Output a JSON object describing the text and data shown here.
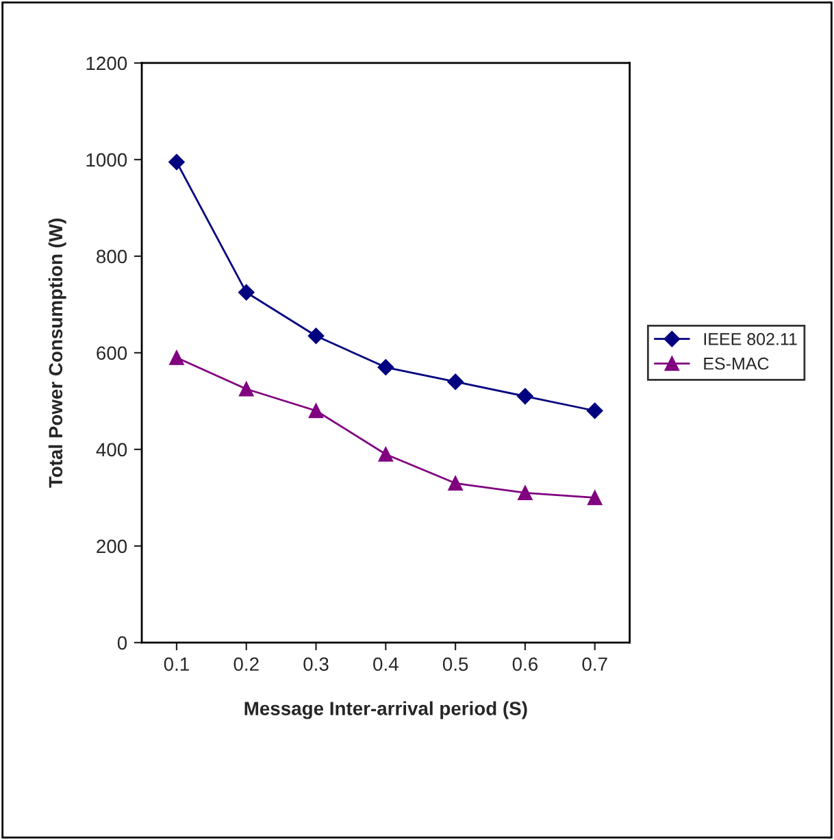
{
  "chart_data": {
    "type": "line",
    "xlabel": "Message Inter-arrival period (S)",
    "ylabel": "Total Power Consumption (W)",
    "categories": [
      "0.1",
      "0.2",
      "0.3",
      "0.4",
      "0.5",
      "0.6",
      "0.7"
    ],
    "series": [
      {
        "name": "IEEE 802.11",
        "color": "#000080",
        "marker": "diamond",
        "values": [
          995,
          725,
          635,
          570,
          540,
          510,
          480
        ]
      },
      {
        "name": "ES-MAC",
        "color": "#800080",
        "marker": "triangle",
        "values": [
          590,
          525,
          480,
          390,
          330,
          310,
          300
        ]
      }
    ],
    "ylim": [
      0,
      1200
    ],
    "yticks": [
      0,
      200,
      400,
      600,
      800,
      1000,
      1200
    ],
    "grid": false,
    "legend": "right"
  }
}
